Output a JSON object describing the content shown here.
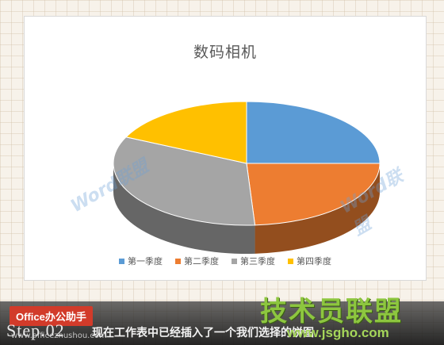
{
  "chart_data": {
    "type": "pie",
    "title": "数码相机",
    "categories": [
      "第一季度",
      "第二季度",
      "第三季度",
      "第四季度"
    ],
    "values": [
      25,
      24,
      33,
      18
    ],
    "colors": [
      "#5b9bd5",
      "#ed7d31",
      "#a5a5a5",
      "#ffc000"
    ],
    "legend_position": "bottom",
    "style": "3d"
  },
  "watermark": {
    "text": "Word联盟"
  },
  "bottom_bar": {
    "badge": "Office办公助手",
    "step": "Step.02",
    "caption": "现在工作表中已经插入了一个我们选择的饼图",
    "site_left": "www.officezhushou.com",
    "site_logo": "技术员联盟",
    "site_url": "www.jsgho.com"
  }
}
